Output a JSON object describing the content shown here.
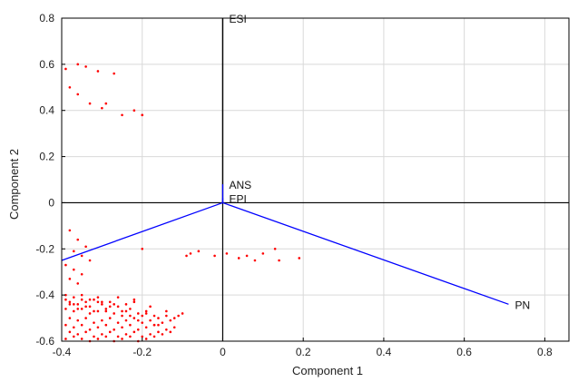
{
  "chart_data": {
    "type": "scatter",
    "title": "",
    "xlabel": "Component 1",
    "ylabel": "Component 2",
    "xlim": [
      -0.4,
      0.86
    ],
    "ylim": [
      -0.6,
      0.8
    ],
    "xticks": [
      "-0.4",
      "-0.2",
      "0",
      "0.2",
      "0.4",
      "0.6",
      "0.8"
    ],
    "yticks": [
      "-0.6",
      "-0.4",
      "-0.2",
      "0",
      "0.2",
      "0.4",
      "0.6",
      "0.8"
    ],
    "grid": true,
    "colors": {
      "scores": "#ff0000",
      "vectors": "#0000ff",
      "axes": "#000000",
      "grid": "#d9d9d9"
    },
    "vectors": [
      {
        "label": "ESI",
        "x": 0.0,
        "y": 0.8,
        "color": "#000000"
      },
      {
        "label": "ANS",
        "x": 0.0,
        "y": 0.08,
        "color": "#0000ff"
      },
      {
        "label": "EPI",
        "x": 0.0,
        "y": 0.02,
        "color": "#0000ff"
      },
      {
        "label": "PN",
        "x": 0.71,
        "y": -0.44,
        "color": "#0000ff"
      },
      {
        "label": "",
        "x": -0.4,
        "y": -0.25,
        "color": "#0000ff"
      }
    ],
    "scores": {
      "x": [
        -0.39,
        -0.36,
        -0.34,
        -0.31,
        -0.27,
        -0.38,
        -0.36,
        -0.33,
        -0.3,
        -0.29,
        -0.22,
        -0.2,
        -0.25,
        -0.2,
        -0.38,
        -0.36,
        -0.34,
        -0.37,
        -0.35,
        -0.33,
        -0.39,
        -0.37,
        -0.35,
        -0.38,
        -0.36,
        -0.2,
        -0.09,
        -0.08,
        -0.06,
        -0.02,
        0.01,
        0.04,
        0.06,
        0.08,
        0.1,
        0.13,
        0.14,
        0.19,
        -0.39,
        -0.37,
        -0.35,
        -0.33,
        -0.31,
        -0.38,
        -0.36,
        -0.34,
        -0.32,
        -0.3,
        -0.28,
        -0.26,
        -0.24,
        -0.22,
        -0.39,
        -0.37,
        -0.35,
        -0.33,
        -0.31,
        -0.29,
        -0.27,
        -0.25,
        -0.23,
        -0.21,
        -0.19,
        -0.17,
        -0.38,
        -0.36,
        -0.34,
        -0.32,
        -0.3,
        -0.28,
        -0.26,
        -0.24,
        -0.22,
        -0.2,
        -0.18,
        -0.16,
        -0.14,
        -0.12,
        -0.39,
        -0.37,
        -0.35,
        -0.33,
        -0.31,
        -0.29,
        -0.27,
        -0.25,
        -0.23,
        -0.21,
        -0.19,
        -0.17,
        -0.15,
        -0.13,
        -0.11,
        -0.1,
        -0.38,
        -0.36,
        -0.34,
        -0.32,
        -0.3,
        -0.28,
        -0.26,
        -0.24,
        -0.22,
        -0.2,
        -0.18,
        -0.16,
        -0.14,
        -0.12,
        -0.39,
        -0.37,
        -0.35,
        -0.33,
        -0.31,
        -0.29,
        -0.27,
        -0.25,
        -0.23,
        -0.21,
        -0.19,
        -0.17,
        -0.15,
        -0.13,
        -0.38,
        -0.36,
        -0.34,
        -0.32,
        -0.3,
        -0.28,
        -0.26,
        -0.24,
        -0.22,
        -0.2,
        -0.18,
        -0.16,
        -0.14,
        -0.39,
        -0.37,
        -0.35,
        -0.33,
        -0.31,
        -0.29,
        -0.27,
        -0.25,
        -0.23,
        -0.21,
        -0.19,
        -0.17
      ],
      "y": [
        0.58,
        0.6,
        0.59,
        0.57,
        0.56,
        0.5,
        0.47,
        0.43,
        0.41,
        0.43,
        0.4,
        0.38,
        0.38,
        0.38,
        -0.12,
        -0.16,
        -0.19,
        -0.21,
        -0.23,
        -0.25,
        -0.27,
        -0.29,
        -0.31,
        -0.33,
        -0.35,
        -0.2,
        -0.23,
        -0.22,
        -0.21,
        -0.23,
        -0.22,
        -0.24,
        -0.23,
        -0.25,
        -0.22,
        -0.2,
        -0.25,
        -0.24,
        -0.4,
        -0.41,
        -0.4,
        -0.42,
        -0.41,
        -0.43,
        -0.44,
        -0.43,
        -0.42,
        -0.44,
        -0.43,
        -0.45,
        -0.44,
        -0.43,
        -0.46,
        -0.47,
        -0.46,
        -0.48,
        -0.47,
        -0.46,
        -0.48,
        -0.47,
        -0.49,
        -0.48,
        -0.47,
        -0.49,
        -0.5,
        -0.51,
        -0.5,
        -0.52,
        -0.51,
        -0.5,
        -0.52,
        -0.51,
        -0.5,
        -0.52,
        -0.51,
        -0.5,
        -0.49,
        -0.5,
        -0.53,
        -0.54,
        -0.53,
        -0.55,
        -0.54,
        -0.53,
        -0.55,
        -0.54,
        -0.53,
        -0.55,
        -0.54,
        -0.53,
        -0.52,
        -0.51,
        -0.49,
        -0.48,
        -0.56,
        -0.57,
        -0.56,
        -0.58,
        -0.57,
        -0.56,
        -0.58,
        -0.57,
        -0.56,
        -0.58,
        -0.57,
        -0.56,
        -0.55,
        -0.54,
        -0.59,
        -0.58,
        -0.59,
        -0.6,
        -0.59,
        -0.58,
        -0.6,
        -0.59,
        -0.58,
        -0.6,
        -0.59,
        -0.58,
        -0.57,
        -0.56,
        -0.44,
        -0.46,
        -0.45,
        -0.47,
        -0.43,
        -0.45,
        -0.41,
        -0.47,
        -0.42,
        -0.49,
        -0.45,
        -0.53,
        -0.47,
        -0.42,
        -0.44,
        -0.42,
        -0.45,
        -0.43,
        -0.47,
        -0.44,
        -0.49,
        -0.46,
        -0.51,
        -0.48,
        -0.53
      ]
    }
  }
}
